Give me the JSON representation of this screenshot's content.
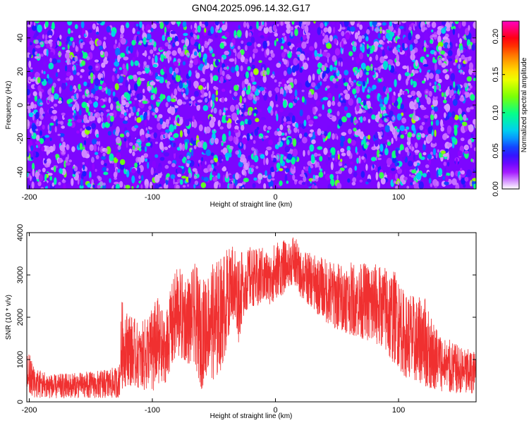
{
  "chart_data": [
    {
      "type": "heatmap",
      "title": "GN04.2025.096.14.32.G17",
      "xlabel": "Height of straight line (km)",
      "ylabel": "Frequency (Hz)",
      "xlim": [
        -202,
        163
      ],
      "ylim": [
        -50,
        50
      ],
      "xticks": [
        -200,
        -100,
        0,
        100
      ],
      "yticks": [
        -40,
        -20,
        0,
        20,
        40
      ],
      "colorbar": {
        "label": "Normalized spectral amplitude",
        "range": [
          0.0,
          0.22
        ],
        "ticks": [
          0.0,
          0.05,
          0.1,
          0.15,
          0.2
        ],
        "tick_labels": [
          "0.00",
          "0.05",
          "0.10",
          "0.15",
          "0.20"
        ],
        "colormap": [
          "#ffffff",
          "#9a00ff",
          "#1a1aff",
          "#00c8ff",
          "#00ff90",
          "#80ff00",
          "#ffff00",
          "#ff9000",
          "#ff0000",
          "#ff00c0"
        ]
      },
      "background_amplitude": 0.03,
      "blob_density": "dense noise-like scatter of amplitudes mostly 0.02–0.08, sparse peaks up to ~0.12"
    },
    {
      "type": "line",
      "xlabel": "Height of straight line (km)",
      "ylabel": "SNR (10 * v/v)",
      "xlim": [
        -202,
        163
      ],
      "ylim": [
        0,
        4000
      ],
      "xticks": [
        -200,
        -100,
        0,
        100
      ],
      "yticks": [
        0,
        1000,
        2000,
        3000,
        4000
      ],
      "color": "#f03030",
      "envelope_km": [
        -202,
        -195,
        -180,
        -160,
        -140,
        -127,
        -125,
        -120,
        -110,
        -100,
        -95,
        -90,
        -85,
        -80,
        -75,
        -70,
        -65,
        -60,
        -55,
        -50,
        -45,
        -40,
        -35,
        -30,
        -25,
        -20,
        -15,
        -10,
        -5,
        0,
        5,
        10,
        15,
        20,
        30,
        40,
        50,
        60,
        70,
        80,
        90,
        95,
        100,
        105,
        110,
        115,
        120,
        125,
        130,
        140,
        150,
        163
      ],
      "envelope_low": [
        150,
        100,
        80,
        90,
        90,
        100,
        300,
        400,
        300,
        200,
        300,
        400,
        800,
        1100,
        900,
        900,
        800,
        300,
        700,
        500,
        700,
        1200,
        2000,
        1400,
        2100,
        2300,
        2200,
        2400,
        2300,
        2400,
        2500,
        2700,
        2800,
        2500,
        2200,
        1900,
        1700,
        1600,
        1500,
        1400,
        1200,
        900,
        800,
        600,
        500,
        500,
        400,
        300,
        250,
        200,
        200,
        150
      ],
      "envelope_high": [
        1300,
        800,
        650,
        700,
        750,
        850,
        2400,
        2200,
        1800,
        2300,
        2500,
        2000,
        2700,
        3300,
        3000,
        3000,
        3300,
        2800,
        3200,
        3300,
        3400,
        3600,
        3800,
        3600,
        3500,
        3700,
        3600,
        3700,
        3500,
        3800,
        3900,
        3700,
        4000,
        3600,
        3500,
        3400,
        3300,
        3300,
        3300,
        3300,
        3200,
        3100,
        3100,
        2500,
        2600,
        2400,
        2600,
        2200,
        1800,
        1500,
        1300,
        1200
      ]
    }
  ]
}
